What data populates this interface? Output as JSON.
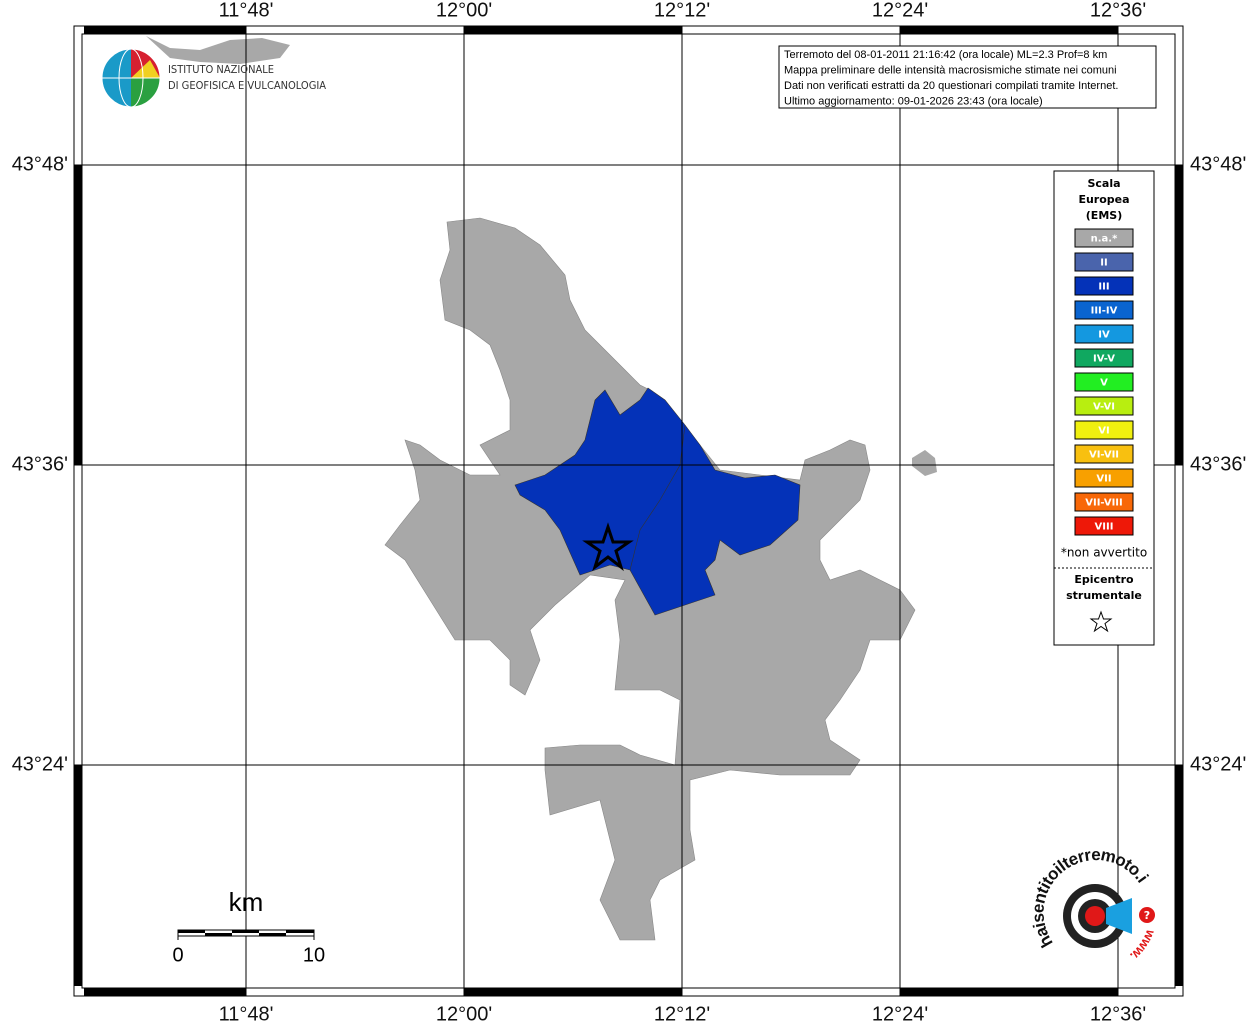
{
  "header": {
    "lines": [
      "Terremoto del 08-01-2011 21:16:42 (ora locale) ML=2.3 Prof=8 km",
      "Mappa preliminare delle intensità macrosismiche stimate nei comuni",
      "Dati non verificati estratti da 20 questionari compilati tramite Internet.",
      "Ultimo aggiornamento: 09-01-2026 23:43 (ora locale)"
    ]
  },
  "logo": {
    "lines": [
      "ISTITUTO NAZIONALE",
      "DI GEOFISICA E VULCANOLOGIA"
    ]
  },
  "axes": {
    "longitudes": [
      "11°48'",
      "12°00'",
      "12°12'",
      "12°24'",
      "12°36'"
    ],
    "latitudes": [
      "43°48'",
      "43°36'",
      "43°24'"
    ]
  },
  "legend": {
    "title": [
      "Scala",
      "Europea",
      "(EMS)"
    ],
    "items": [
      {
        "label": "n.a.*",
        "color": "#a8a8a8"
      },
      {
        "label": "II",
        "color": "#4a64ac"
      },
      {
        "label": "III",
        "color": "#0432b8"
      },
      {
        "label": "III-IV",
        "color": "#0a64d0"
      },
      {
        "label": "IV",
        "color": "#1498e0"
      },
      {
        "label": "IV-V",
        "color": "#10a860"
      },
      {
        "label": "V",
        "color": "#22ee22"
      },
      {
        "label": "V-VI",
        "color": "#b8ee10"
      },
      {
        "label": "VI",
        "color": "#f0f010"
      },
      {
        "label": "VI-VII",
        "color": "#f8c010"
      },
      {
        "label": "VII",
        "color": "#f8a000"
      },
      {
        "label": "VII-VIII",
        "color": "#f86808"
      },
      {
        "label": "VIII",
        "color": "#ee1808"
      }
    ],
    "note": "*non avvertito",
    "epicenter": [
      "Epicentro",
      "strumentale"
    ]
  },
  "scale_bar": {
    "unit": "km",
    "start": "0",
    "end": "10"
  },
  "site_logo": {
    "text": "haisentitoilterremoto.it",
    "prefix": "www.",
    "mark": "?"
  }
}
